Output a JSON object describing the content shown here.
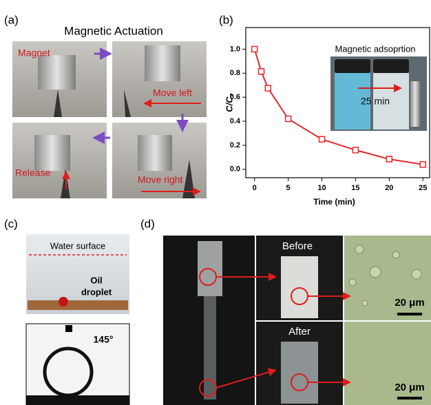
{
  "panel_labels": [
    "(a)",
    "(b)",
    "(c)",
    "(d)"
  ],
  "panel_a": {
    "title": "Magnetic Actuation",
    "annotations": [
      "Magnet",
      "Move left",
      "Release",
      "Move right"
    ]
  },
  "chart_data": {
    "type": "line",
    "x_label": "Time (min)",
    "y_label": "C/C₀",
    "x": [
      0,
      1,
      2,
      5,
      10,
      15,
      20,
      25
    ],
    "values": [
      1.0,
      0.815,
      0.675,
      0.42,
      0.25,
      0.16,
      0.085,
      0.04
    ],
    "color": "#e8262a",
    "xlim": [
      -1.3,
      26
    ],
    "ylim": [
      -0.07,
      1.18
    ],
    "xticks": [
      0,
      5,
      10,
      15,
      20,
      25
    ],
    "yticks": [
      {
        "value": 0,
        "label": "0.0"
      },
      0.2,
      0.4,
      0.6,
      0.8,
      {
        "value": 1,
        "label": "1.0"
      }
    ],
    "inset_title": "Magnetic adsoprtion",
    "inset_annotation": "25 min"
  },
  "panel_c": {
    "labels": [
      "Water surface",
      "Oil",
      "droplet"
    ],
    "contact_angle": "145°"
  },
  "panel_d": {
    "before": "Before",
    "after": "After",
    "scale_bars": [
      "20 μm",
      "20 μm"
    ]
  }
}
